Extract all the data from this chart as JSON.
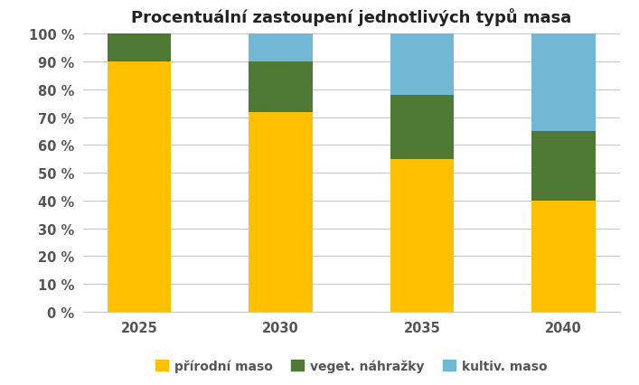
{
  "title": "Procentuální zastoupení jednotlivých typů masa",
  "categories": [
    "2025",
    "2030",
    "2035",
    "2040"
  ],
  "series": {
    "přírodní maso": [
      90,
      72,
      55,
      40
    ],
    "veget. náhražky": [
      10,
      18,
      23,
      25
    ],
    "kultiv. maso": [
      0,
      10,
      22,
      35
    ]
  },
  "colors": {
    "přírodní maso": "#FFC000",
    "veget. náhražky": "#4E7A35",
    "kultiv. maso": "#70B8D4"
  },
  "ylim": [
    0,
    100
  ],
  "yticks": [
    0,
    10,
    20,
    30,
    40,
    50,
    60,
    70,
    80,
    90,
    100
  ],
  "ylabel_format": "{} %",
  "bar_width": 0.45,
  "legend_ncol": 3,
  "title_fontsize": 13,
  "tick_fontsize": 10.5,
  "legend_fontsize": 10,
  "background_color": "#FFFFFF",
  "grid_color": "#C8C8C8"
}
